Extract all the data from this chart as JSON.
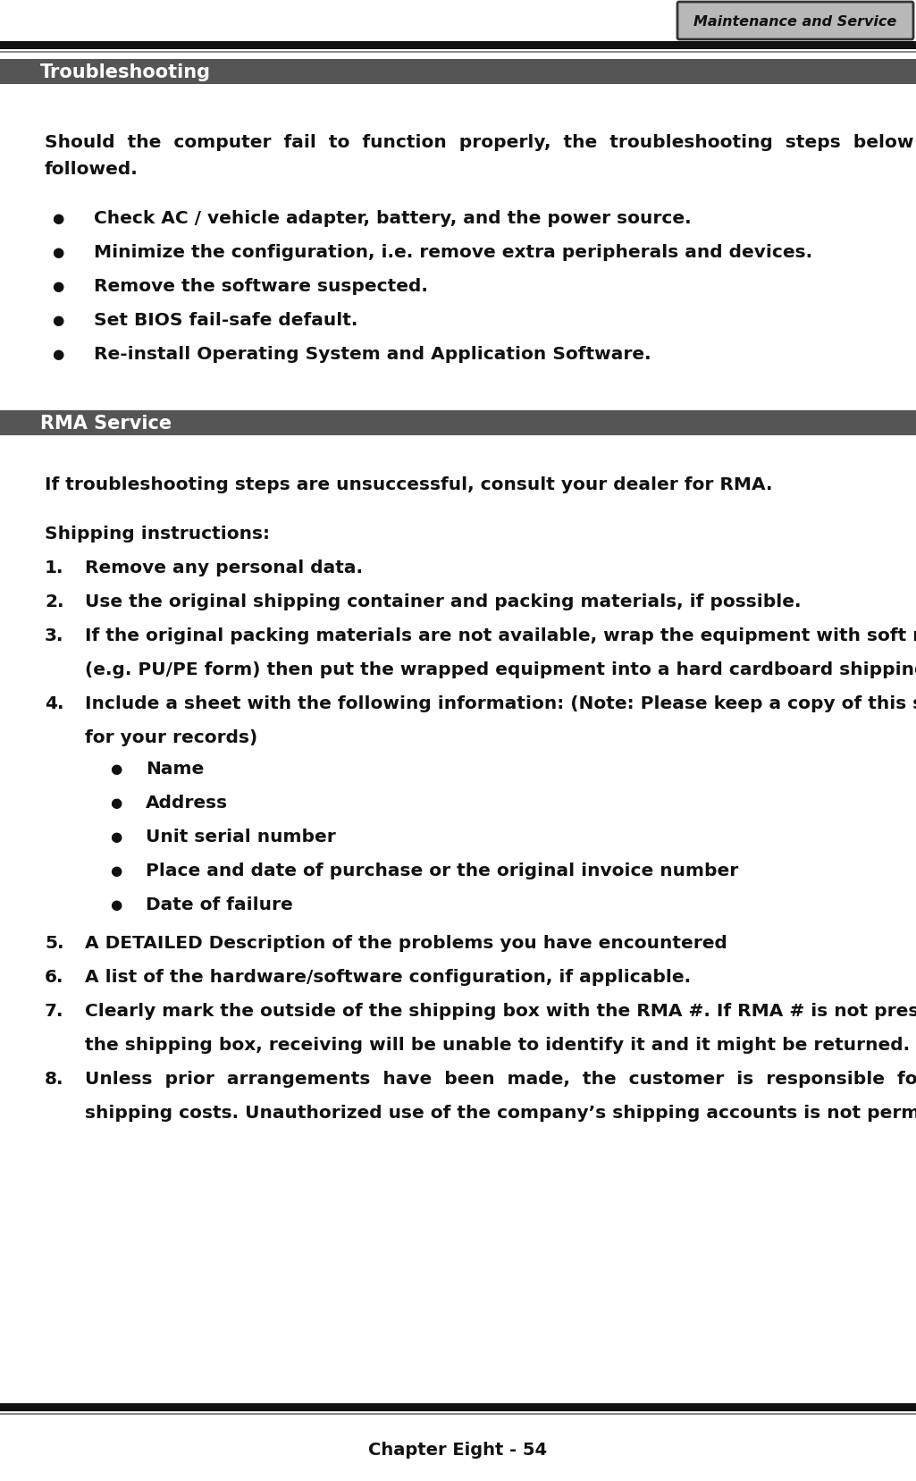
{
  "bg_color": "#ffffff",
  "header_tab_text": "Maintenance and Service",
  "header_tab_bg": "#b8b8b8",
  "header_tab_border": "#333333",
  "header_line_color": "#111111",
  "section1_title": "Troubleshooting",
  "section1_bg": "#555555",
  "section1_text_color": "#ffffff",
  "section2_title": "RMA Service",
  "section2_bg": "#555555",
  "section2_text_color": "#ffffff",
  "intro_line1": "Should  the  computer  fail  to  function  properly,  the  troubleshooting  steps  below  may  be",
  "intro_line2": "followed.",
  "bullets1": [
    "Check AC / vehicle adapter, battery, and the power source.",
    "Minimize the configuration, i.e. remove extra peripherals and devices.",
    "Remove the software suspected.",
    "Set BIOS fail-safe default.",
    "Re-install Operating System and Application Software."
  ],
  "rma_intro": "If troubleshooting steps are unsuccessful, consult your dealer for RMA.",
  "shipping_label": "Shipping instructions:",
  "numbered_items": [
    [
      "Remove any personal data."
    ],
    [
      "Use the original shipping container and packing materials, if possible."
    ],
    [
      "If the original packing materials are not available, wrap the equipment with soft material",
      "(e.g. PU/PE form) then put the wrapped equipment into a hard cardboard shipping box."
    ],
    [
      "Include a sheet with the following information: (Note: Please keep a copy of this sheet",
      "for your records)"
    ],
    [
      "A DETAILED Description of the problems you have encountered"
    ],
    [
      "A list of the hardware/software configuration, if applicable."
    ],
    [
      "Clearly mark the outside of the shipping box with the RMA #. If RMA # is not present on",
      "the shipping box, receiving will be unable to identify it and it might be returned."
    ],
    [
      "Unless  prior  arrangements  have  been  made,  the  customer  is  responsible  for  all",
      "shipping costs. Unauthorized use of the company’s shipping accounts is not permitted."
    ]
  ],
  "sub_bullets": [
    "Name",
    "Address",
    "Unit serial number",
    "Place and date of purchase or the original invoice number",
    "Date of failure"
  ],
  "footer_text": "Chapter Eight - 54",
  "body_font_size": 14.5,
  "section_font_size": 15,
  "footer_font_size": 14
}
